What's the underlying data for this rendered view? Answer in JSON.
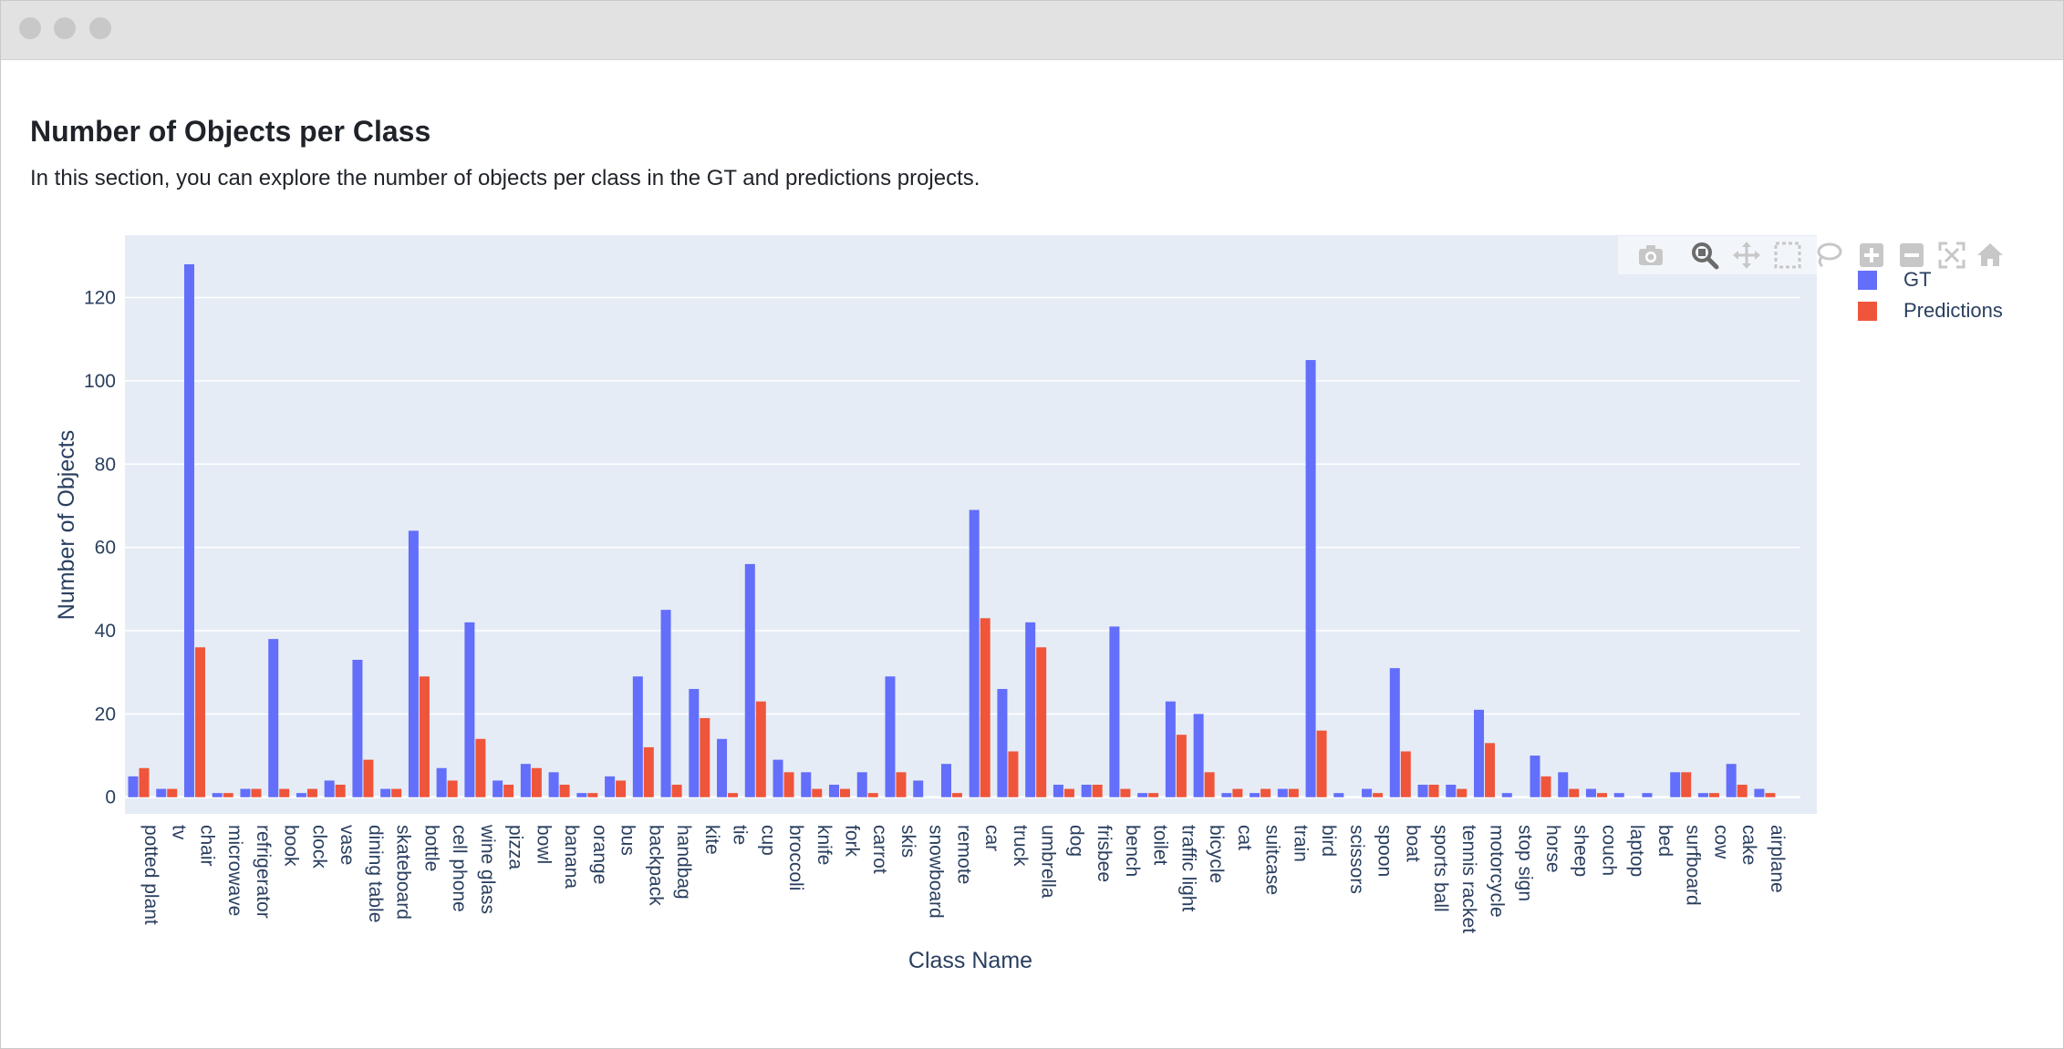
{
  "section": {
    "title": "Number of Objects per Class",
    "description": "In this section, you can explore the number of objects per class in the GT and predictions projects."
  },
  "modebar": {
    "icons": [
      "camera-icon",
      "zoom-icon",
      "pan-icon",
      "box-select-icon",
      "lasso-icon",
      "zoom-in-icon",
      "zoom-out-icon",
      "autoscale-icon",
      "reset-axes-icon"
    ]
  },
  "colors": {
    "gt": "#636efa",
    "predictions": "#ef553b",
    "plot_bg": "#e5ecf6",
    "grid": "#ffffff"
  },
  "chart_data": {
    "type": "bar",
    "title": "",
    "xlabel": "Class Name",
    "ylabel": "Number of Objects",
    "ylim": [
      -4,
      135
    ],
    "yticks": [
      0,
      20,
      40,
      60,
      80,
      100,
      120
    ],
    "grid": true,
    "legend_position": "top-right",
    "categories": [
      "potted plant",
      "tv",
      "chair",
      "microwave",
      "refrigerator",
      "book",
      "clock",
      "vase",
      "dining table",
      "skateboard",
      "bottle",
      "cell phone",
      "wine glass",
      "pizza",
      "bowl",
      "banana",
      "orange",
      "bus",
      "backpack",
      "handbag",
      "kite",
      "tie",
      "cup",
      "broccoli",
      "knife",
      "fork",
      "carrot",
      "skis",
      "snowboard",
      "remote",
      "car",
      "truck",
      "umbrella",
      "dog",
      "frisbee",
      "bench",
      "toilet",
      "traffic light",
      "bicycle",
      "cat",
      "suitcase",
      "train",
      "bird",
      "scissors",
      "spoon",
      "boat",
      "sports ball",
      "tennis racket",
      "motorcycle",
      "stop sign",
      "horse",
      "sheep",
      "couch",
      "laptop",
      "bed",
      "surfboard",
      "cow",
      "cake",
      "airplane"
    ],
    "series": [
      {
        "name": "GT",
        "values": [
          5,
          2,
          128,
          1,
          2,
          38,
          1,
          4,
          33,
          2,
          64,
          7,
          42,
          4,
          8,
          6,
          1,
          5,
          29,
          45,
          26,
          14,
          56,
          9,
          6,
          3,
          6,
          29,
          4,
          8,
          69,
          26,
          42,
          3,
          3,
          41,
          1,
          23,
          20,
          1,
          1,
          2,
          105,
          1,
          2,
          31,
          3,
          3,
          21,
          1,
          10,
          6,
          2,
          1,
          1,
          6,
          1,
          8,
          2
        ]
      },
      {
        "name": "Predictions",
        "values": [
          7,
          2,
          36,
          1,
          2,
          2,
          2,
          3,
          9,
          2,
          29,
          4,
          14,
          3,
          7,
          3,
          1,
          4,
          12,
          3,
          19,
          1,
          23,
          6,
          2,
          2,
          1,
          6,
          0,
          1,
          43,
          11,
          36,
          2,
          3,
          2,
          1,
          15,
          6,
          2,
          2,
          2,
          16,
          0,
          1,
          11,
          3,
          2,
          13,
          0,
          5,
          2,
          1,
          0,
          0,
          6,
          1,
          3,
          1
        ]
      }
    ]
  }
}
